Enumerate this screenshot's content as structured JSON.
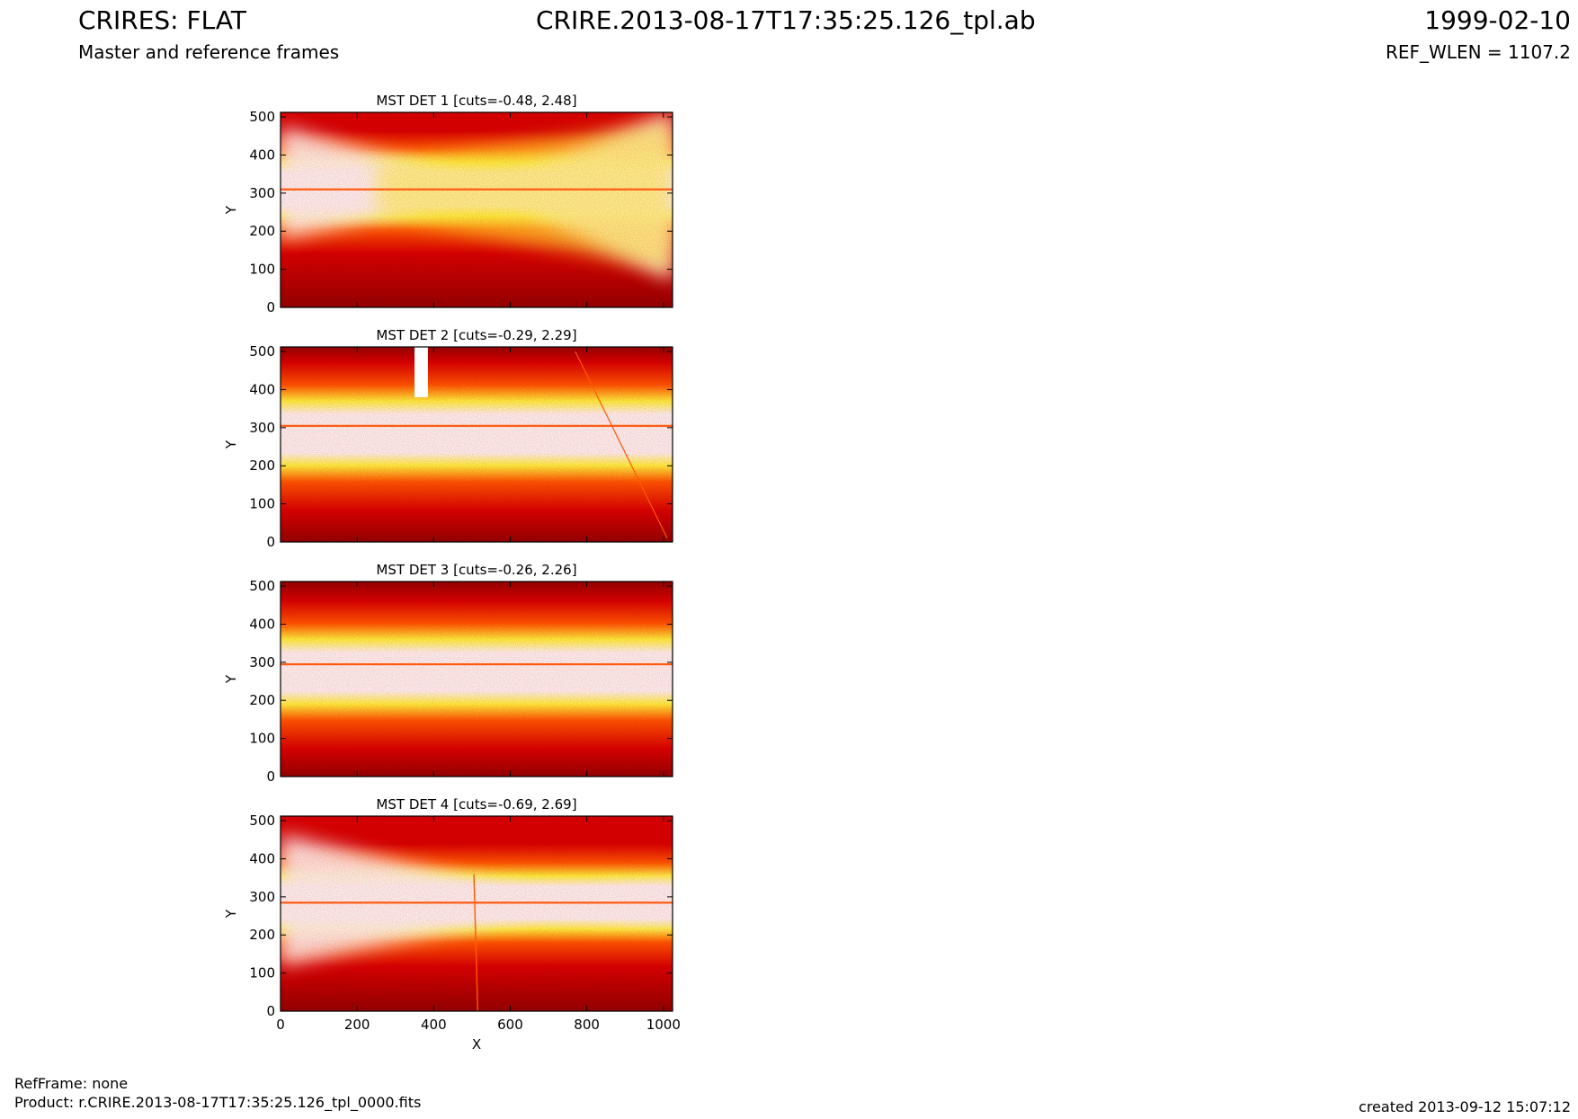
{
  "header": {
    "title_left": "CRIRES: FLAT",
    "subtitle_left": "Master and reference frames",
    "title_center": "CRIRE.2013-08-17T17:35:25.126_tpl.ab",
    "title_right": "1999-02-10",
    "subtitle_right": "REF_WLEN = 1107.2"
  },
  "footer": {
    "refframe": "RefFrame: none",
    "product": "Product: r.CRIRE.2013-08-17T17:35:25.126_tpl_0000.fits",
    "created": "created 2013-09-12 15:07:12"
  },
  "colors": {
    "hot_dark": "#8b0000",
    "hot_red": "#d40000",
    "hot_orange": "#ff5a00",
    "hot_yellow": "#ffff40",
    "white": "#ffffff",
    "streak": "#ff5a10"
  },
  "chart_data": [
    {
      "type": "heatmap",
      "title": "MST DET 1 [cuts=-0.48, 2.48]",
      "ylabel": "Y",
      "xlabel": "",
      "xlim": [
        0,
        1024
      ],
      "ylim": [
        0,
        512
      ],
      "yticks": [
        "0",
        "100",
        "200",
        "300",
        "400",
        "500"
      ],
      "xticks": [],
      "pattern": "bowtie",
      "bright_row": 310
    },
    {
      "type": "heatmap",
      "title": "MST DET 2 [cuts=-0.29, 2.29]",
      "ylabel": "Y",
      "xlabel": "",
      "xlim": [
        0,
        1024
      ],
      "ylim": [
        0,
        512
      ],
      "yticks": [
        "0",
        "100",
        "200",
        "300",
        "400",
        "500"
      ],
      "xticks": [],
      "pattern": "band",
      "bright_row": 305
    },
    {
      "type": "heatmap",
      "title": "MST DET 3 [cuts=-0.26, 2.26]",
      "ylabel": "Y",
      "xlabel": "",
      "xlim": [
        0,
        1024
      ],
      "ylim": [
        0,
        512
      ],
      "yticks": [
        "0",
        "100",
        "200",
        "300",
        "400",
        "500"
      ],
      "xticks": [],
      "pattern": "band",
      "bright_row": 295
    },
    {
      "type": "heatmap",
      "title": "MST DET 4 [cuts=-0.69, 2.69]",
      "ylabel": "Y",
      "xlabel": "X",
      "xlim": [
        0,
        1024
      ],
      "ylim": [
        0,
        512
      ],
      "yticks": [
        "0",
        "100",
        "200",
        "300",
        "400",
        "500"
      ],
      "xticks": [
        "0",
        "200",
        "400",
        "600",
        "800",
        "1000"
      ],
      "pattern": "bowtie",
      "bright_row": 285
    }
  ]
}
